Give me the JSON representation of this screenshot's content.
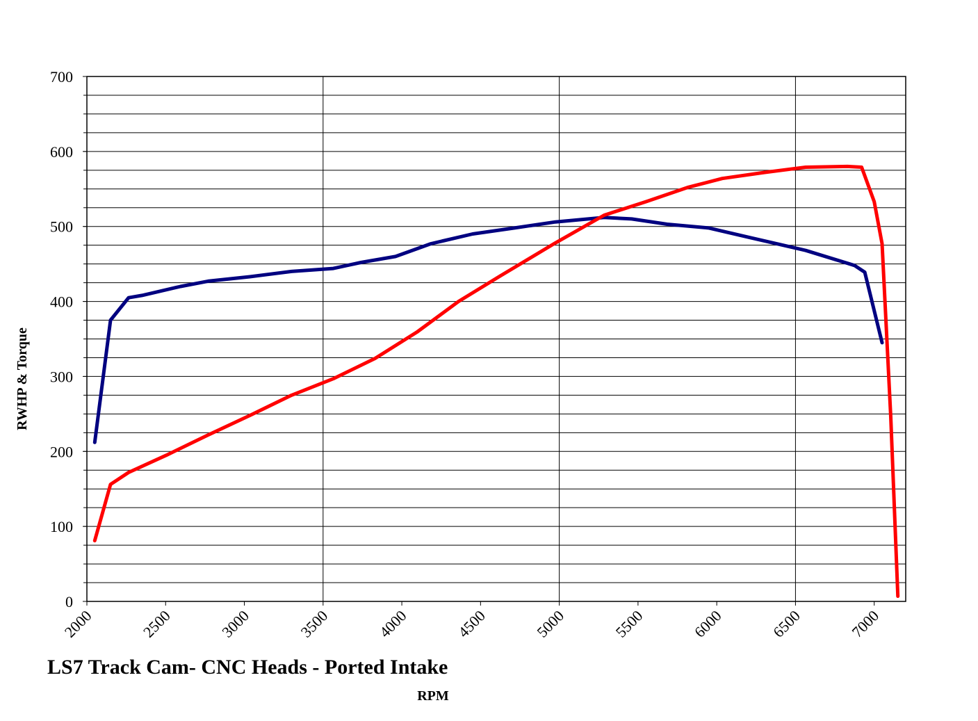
{
  "chart_data": {
    "type": "line",
    "title": "LS7 Track Cam- CNC Heads - Ported Intake",
    "x_label": "RPM",
    "y_label": "RWHP & Torque",
    "xlim": [
      2000,
      7200
    ],
    "xticks": [
      2000,
      2500,
      3000,
      3500,
      4000,
      4500,
      5000,
      5500,
      6000,
      6500,
      7000
    ],
    "x_gridlines": [
      3500,
      5000,
      6500
    ],
    "ylim": [
      0,
      700
    ],
    "yticks": [
      0,
      100,
      200,
      300,
      400,
      500,
      600,
      700
    ],
    "y_gridlines": [
      25,
      50,
      75,
      100,
      125,
      150,
      175,
      200,
      225,
      250,
      275,
      300,
      325,
      350,
      375,
      400,
      425,
      450,
      475,
      500,
      525,
      550,
      575,
      600,
      625,
      650,
      675
    ],
    "grid": true,
    "series": [
      {
        "color": "#000080",
        "x": [
          2050,
          2150,
          2265,
          2350,
          2595,
          2770,
          3035,
          3300,
          3565,
          3740,
          3960,
          4185,
          4450,
          4715,
          4975,
          5285,
          5460,
          5685,
          5950,
          6215,
          6565,
          6875,
          6940,
          7050
        ],
        "values": [
          212,
          375,
          405,
          408,
          420,
          427,
          433,
          440,
          444,
          452,
          460,
          477,
          490,
          498,
          506,
          512,
          510,
          503,
          498,
          485,
          468,
          448,
          439,
          345
        ]
      },
      {
        "color": "#ff0000",
        "x": [
          2050,
          2150,
          2265,
          2505,
          2770,
          3035,
          3300,
          3565,
          3830,
          4095,
          4360,
          4625,
          4975,
          5285,
          5550,
          5815,
          6035,
          6300,
          6565,
          6830,
          6920,
          7000,
          7050,
          7105,
          7150
        ],
        "values": [
          81,
          156,
          172,
          195,
          222,
          248,
          275,
          297,
          324,
          359,
          400,
          434,
          478,
          515,
          533,
          552,
          564,
          572,
          579,
          580,
          579,
          533,
          477,
          246,
          7
        ]
      }
    ]
  }
}
